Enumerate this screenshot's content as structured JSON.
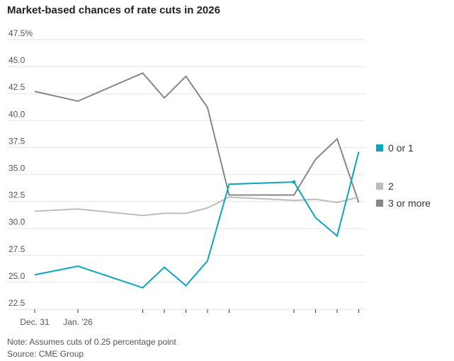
{
  "chart_data": {
    "type": "line",
    "title": "Market-based chances of rate cuts in 2026",
    "x": [
      "2025-12-31",
      "2026-01-02",
      "2026-01-05",
      "2026-01-06",
      "2026-01-07",
      "2026-01-08",
      "2026-01-09",
      "2026-01-12",
      "2026-01-13",
      "2026-01-14",
      "2026-01-15"
    ],
    "x_tick_labels": [
      {
        "x": "2025-12-31",
        "label": "Dec. 31"
      },
      {
        "x": "2026-01-02",
        "label": "Jan. '26"
      }
    ],
    "y_ticks": [
      "47.5%",
      "45.0",
      "42.5",
      "40.0",
      "37.5",
      "35.0",
      "32.5",
      "30.0",
      "27.5",
      "25.0",
      "22.5"
    ],
    "ylim": [
      22.5,
      47.5
    ],
    "grid": true,
    "legend_placement": "right",
    "series": [
      {
        "name": "0 or 1",
        "color": "#0aa5be",
        "values": [
          25.7,
          26.5,
          24.5,
          26.4,
          24.7,
          27.0,
          34.1,
          34.3,
          31.0,
          29.3,
          37.1
        ]
      },
      {
        "name": "2",
        "color": "#bdbdbd",
        "values": [
          31.6,
          31.8,
          31.2,
          31.4,
          31.4,
          31.9,
          32.9,
          32.6,
          32.7,
          32.4,
          32.9
        ]
      },
      {
        "name": "3 or more",
        "color": "#878787",
        "values": [
          42.7,
          41.8,
          44.4,
          42.1,
          44.1,
          41.2,
          33.1,
          33.1,
          36.4,
          38.3,
          32.4
        ]
      }
    ]
  },
  "notes": {
    "note": "Note: Assumes cuts of 0.25 percentage point",
    "source": "Source: CME Group"
  }
}
